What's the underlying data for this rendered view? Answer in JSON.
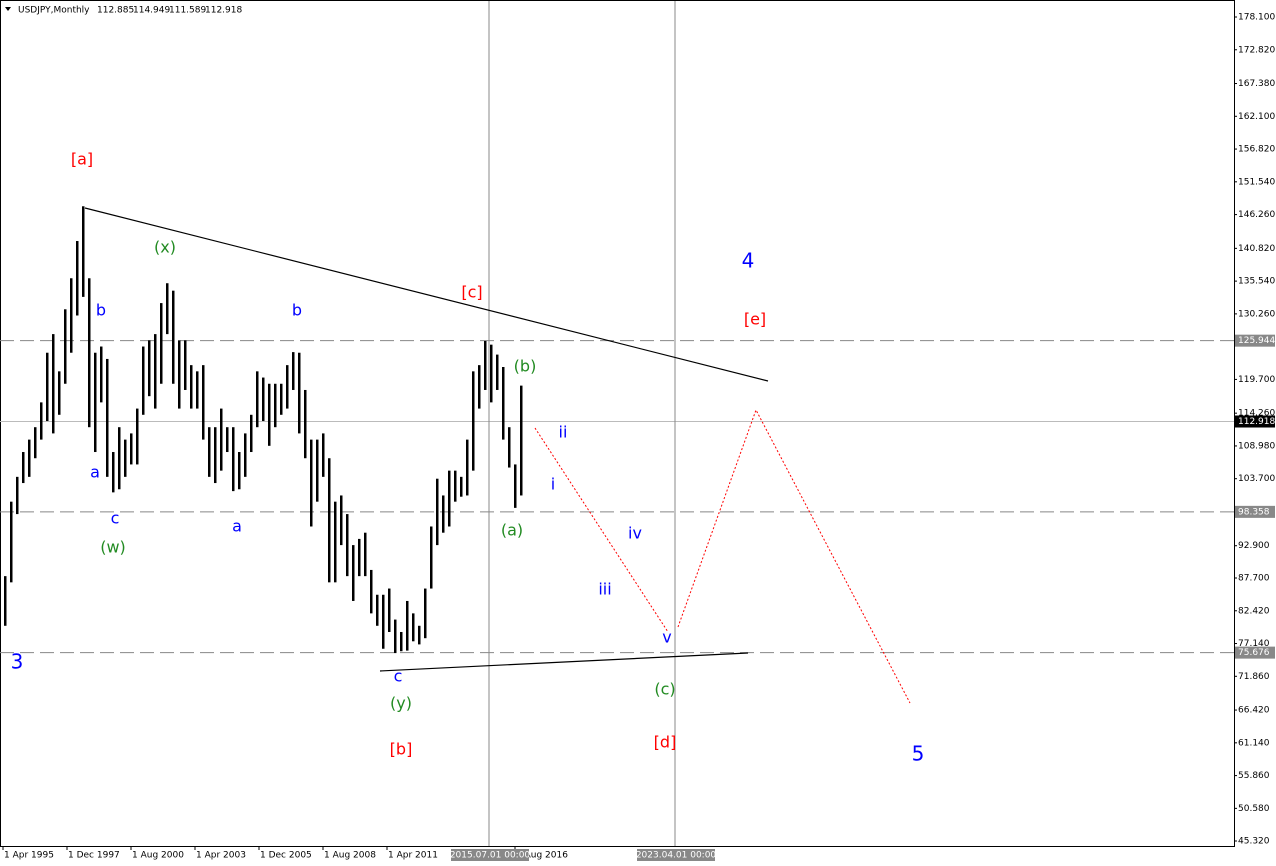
{
  "chart_data": {
    "type": "hilo",
    "title": "USDJPY,Monthly",
    "header_values": [
      112.885,
      114.949,
      111.589,
      112.918
    ],
    "x": [
      "1995.04",
      "1995.07",
      "1995.10",
      "1996.01",
      "1996.04",
      "1996.07",
      "1996.10",
      "1997.01",
      "1997.04",
      "1997.07",
      "1997.10",
      "1998.01",
      "1998.04",
      "1998.07",
      "1998.10",
      "1999.01",
      "1999.04",
      "1999.07",
      "1999.10",
      "2000.01",
      "2000.04",
      "2000.07",
      "2000.10",
      "2001.01",
      "2001.04",
      "2001.07",
      "2001.10",
      "2002.01",
      "2002.04",
      "2002.07",
      "2002.10",
      "2003.01",
      "2003.04",
      "2003.07",
      "2003.10",
      "2004.01",
      "2004.04",
      "2004.07",
      "2004.10",
      "2005.01",
      "2005.04",
      "2005.07",
      "2005.10",
      "2006.01",
      "2006.04",
      "2006.07",
      "2006.10",
      "2007.01",
      "2007.04",
      "2007.07",
      "2007.10",
      "2008.01",
      "2008.04",
      "2008.07",
      "2008.10",
      "2009.01",
      "2009.04",
      "2009.07",
      "2009.10",
      "2010.01",
      "2010.04",
      "2010.07",
      "2010.10",
      "2011.01",
      "2011.04",
      "2011.07",
      "2011.10",
      "2012.01",
      "2012.04",
      "2012.07",
      "2012.10",
      "2013.01",
      "2013.04",
      "2013.07",
      "2013.10",
      "2014.01",
      "2014.04",
      "2014.07",
      "2014.10",
      "2015.01",
      "2015.04",
      "2015.07",
      "2015.10",
      "2016.01",
      "2016.04",
      "2016.07",
      "2016.10"
    ],
    "high": [
      88,
      100,
      104,
      108,
      110,
      112,
      116,
      124,
      127,
      121,
      131,
      136,
      142,
      147.6,
      136,
      124,
      125,
      123,
      108,
      112,
      110,
      111,
      115,
      125,
      126,
      127,
      132,
      135.2,
      134,
      126,
      126,
      122,
      121,
      122,
      112,
      112,
      115,
      112,
      112,
      108,
      111,
      114,
      121,
      120,
      119,
      119,
      119,
      122,
      124.1,
      124,
      118,
      110,
      110,
      111,
      107,
      100,
      101,
      98,
      93,
      94,
      95,
      89,
      85,
      85,
      86,
      81,
      79,
      84,
      82,
      80,
      86,
      96,
      103.7,
      101,
      105,
      105,
      104,
      110,
      121,
      122,
      125.9,
      125.3,
      123.7,
      121.7,
      112,
      106,
      118.7
    ],
    "low": [
      80,
      87,
      98,
      103,
      104,
      107,
      110,
      113,
      111,
      114,
      119,
      124,
      130,
      133,
      112,
      108,
      116,
      104,
      101.5,
      102,
      104,
      106,
      106,
      114,
      117,
      115,
      119,
      127,
      119,
      115,
      118,
      115,
      115,
      110,
      104,
      103,
      105,
      108,
      101.7,
      102,
      104,
      108,
      112,
      113,
      109,
      112,
      114,
      115,
      118,
      111,
      107,
      96,
      100,
      104,
      87,
      87,
      93,
      88,
      84,
      88,
      88,
      82,
      80,
      76.3,
      79,
      75.6,
      75.9,
      76,
      77.5,
      77,
      78,
      86,
      93,
      95,
      96,
      100,
      100.8,
      101,
      105,
      115,
      118,
      116,
      118,
      110,
      105.5,
      99,
      101
    ],
    "color": "#000000",
    "ylim": [
      45.32,
      178.1
    ],
    "yticks": [
      {
        "value": 178.1,
        "label": "178.100"
      },
      {
        "value": 172.82,
        "label": "172.820"
      },
      {
        "value": 167.38,
        "label": "167.380"
      },
      {
        "value": 162.1,
        "label": "162.100"
      },
      {
        "value": 156.82,
        "label": "156.820"
      },
      {
        "value": 151.54,
        "label": "151.540"
      },
      {
        "value": 146.26,
        "label": "146.260"
      },
      {
        "value": 140.82,
        "label": "140.820"
      },
      {
        "value": 135.54,
        "label": "135.540"
      },
      {
        "value": 130.26,
        "label": "130.260"
      },
      {
        "value": 119.7,
        "label": "119.700"
      },
      {
        "value": 114.26,
        "label": "114.260"
      },
      {
        "value": 108.98,
        "label": "108.980"
      },
      {
        "value": 103.7,
        "label": "103.700"
      },
      {
        "value": 92.9,
        "label": "92.900"
      },
      {
        "value": 87.7,
        "label": "87.700"
      },
      {
        "value": 82.42,
        "label": "82.420"
      },
      {
        "value": 77.14,
        "label": "77.140"
      },
      {
        "value": 71.86,
        "label": "71.860"
      },
      {
        "value": 66.42,
        "label": "66.420"
      },
      {
        "value": 61.14,
        "label": "61.140"
      },
      {
        "value": 55.86,
        "label": "55.860"
      },
      {
        "value": 50.58,
        "label": "50.580"
      },
      {
        "value": 45.32,
        "label": "45.320"
      }
    ],
    "xticks": [
      "1 Apr 1995",
      "1 Dec 1997",
      "1 Aug 2000",
      "1 Apr 2003",
      "1 Dec 2005",
      "1 Aug 2008",
      "1 Apr 2011",
      "1 Aug 2016"
    ],
    "hlines": [
      125.944,
      98.358,
      75.676
    ],
    "current_price": 112.918,
    "vlines": [
      "2015.07.01 00:00",
      "2023.04.01 00:00"
    ],
    "annotations": [
      {
        "text": "[a]",
        "color": "#ff0000"
      },
      {
        "text": "[c]",
        "color": "#ff0000"
      },
      {
        "text": "[e]",
        "color": "#ff0000"
      },
      {
        "text": "[b]",
        "color": "#ff0000"
      },
      {
        "text": "[d]",
        "color": "#ff0000"
      },
      {
        "text": "3",
        "color": "#0000ff"
      },
      {
        "text": "4",
        "color": "#0000ff"
      },
      {
        "text": "5",
        "color": "#0000ff"
      },
      {
        "text": "b",
        "color": "#0000ff"
      },
      {
        "text": "a",
        "color": "#0000ff"
      },
      {
        "text": "c",
        "color": "#0000ff"
      },
      {
        "text": "b",
        "color": "#0000ff"
      },
      {
        "text": "a",
        "color": "#0000ff"
      },
      {
        "text": "c",
        "color": "#0000ff"
      },
      {
        "text": "ii",
        "color": "#0000ff"
      },
      {
        "text": "i",
        "color": "#0000ff"
      },
      {
        "text": "iv",
        "color": "#0000ff"
      },
      {
        "text": "iii",
        "color": "#0000ff"
      },
      {
        "text": "v",
        "color": "#0000ff"
      },
      {
        "text": "(x)",
        "color": "#228b22"
      },
      {
        "text": "(w)",
        "color": "#228b22"
      },
      {
        "text": "(y)",
        "color": "#228b22"
      },
      {
        "text": "(b)",
        "color": "#228b22"
      },
      {
        "text": "(a)",
        "color": "#228b22"
      },
      {
        "text": "(c)",
        "color": "#228b22"
      }
    ]
  }
}
